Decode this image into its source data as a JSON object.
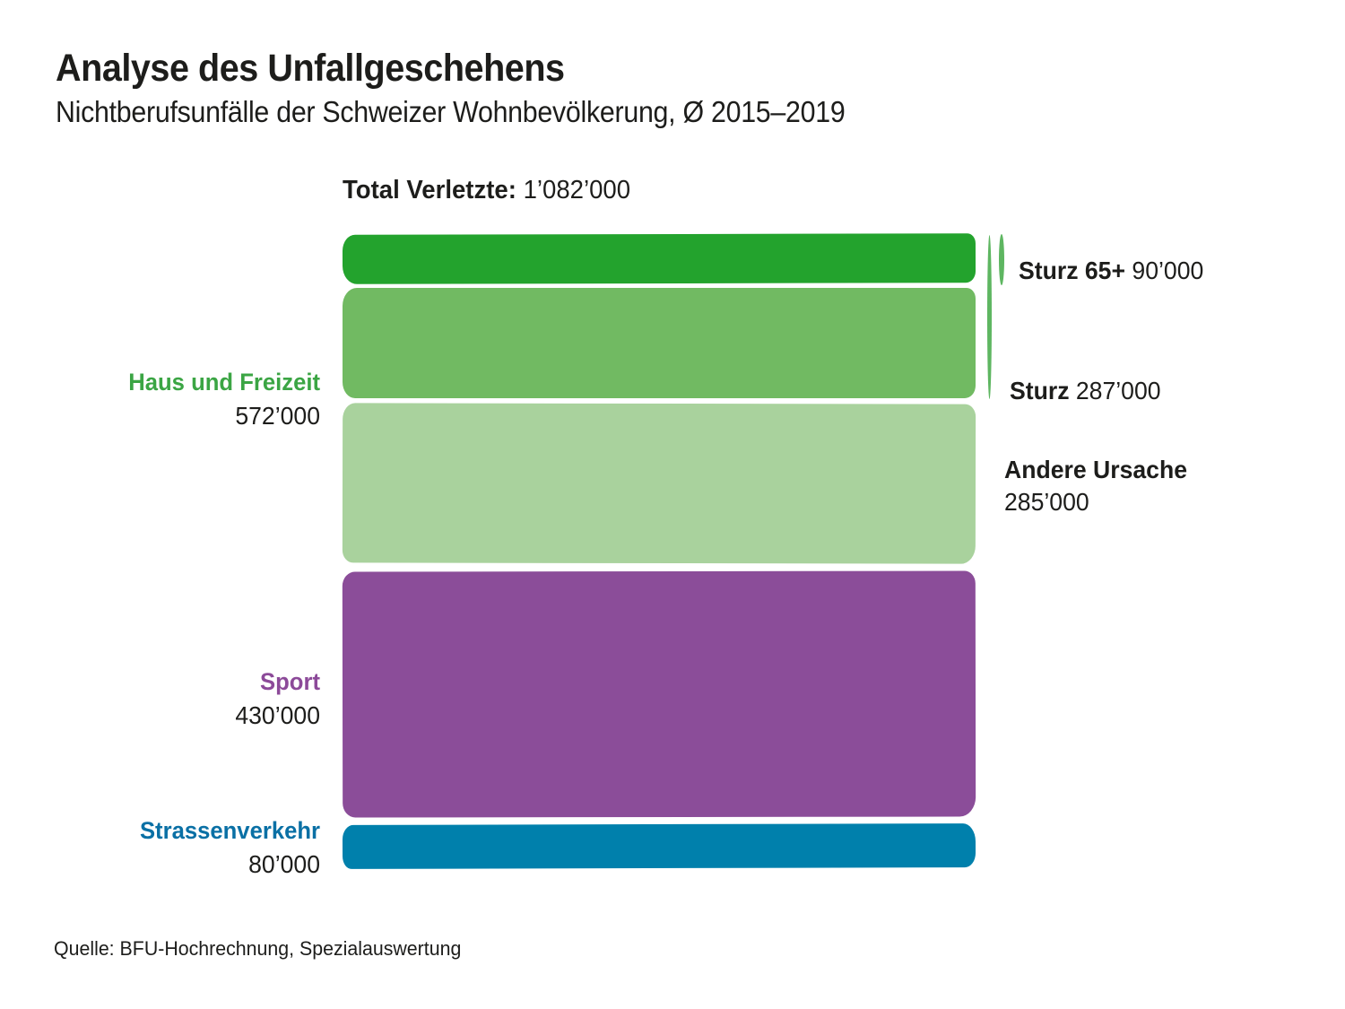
{
  "header": {
    "title": "Analyse des Unfallgeschehens",
    "subtitle": "Nichtberufsunfälle der Schweizer Wohnbevölkerung, Ø 2015–2019"
  },
  "total": {
    "label": "Total Verletzte:",
    "value": "1’082’000"
  },
  "left_labels": [
    {
      "name": "Haus und Freizeit",
      "value": "572’000"
    },
    {
      "name": "Sport",
      "value": "430’000"
    },
    {
      "name": "Strassenverkehr",
      "value": "80’000"
    }
  ],
  "annotations": [
    {
      "name": "Sturz 65+",
      "value": "90’000"
    },
    {
      "name": "Sturz",
      "value": "287’000"
    },
    {
      "name": "Andere Ursache",
      "value": "285’000"
    }
  ],
  "source": "Quelle: BFU-Hochrechnung, Spezialauswertung",
  "colors": {
    "green_dark": "#23a32d",
    "green_mid": "#71ba62",
    "green_light": "#a9d29d",
    "purple": "#8b4d99",
    "blue": "#0080ac",
    "green_label": "#3ba544",
    "purple_label": "#8c4a99",
    "blue_label": "#0a70a5",
    "bracket_green": "#5eb661",
    "text": "#1d1d1b"
  },
  "chart_data": {
    "type": "bar",
    "orientation": "vertical-stacked-proportional",
    "title": "Analyse des Unfallgeschehens",
    "subtitle": "Nichtberufsunfälle der Schweizer Wohnbevölkerung, Ø 2015–2019",
    "unit": "Verletzte",
    "total": {
      "label": "Total Verletzte",
      "value": 1082000,
      "display": "1’082’000"
    },
    "groups": [
      {
        "label": "Haus und Freizeit",
        "value": 572000,
        "display": "572’000",
        "segments": [
          {
            "label": "Sturz",
            "value": 287000,
            "display": "287’000",
            "sub_segment": {
              "label": "Sturz 65+",
              "value": 90000,
              "display": "90’000",
              "color": "#23a32d"
            },
            "color": "#71ba62"
          },
          {
            "label": "Andere Ursache",
            "value": 285000,
            "display": "285’000",
            "color": "#a9d29d"
          }
        ]
      },
      {
        "label": "Sport",
        "value": 430000,
        "display": "430’000",
        "color": "#8b4d99"
      },
      {
        "label": "Strassenverkehr",
        "value": 80000,
        "display": "80’000",
        "color": "#0080ac"
      }
    ],
    "legend_position": "none",
    "grid": false,
    "source": "Quelle: BFU-Hochrechnung, Spezialauswertung"
  }
}
